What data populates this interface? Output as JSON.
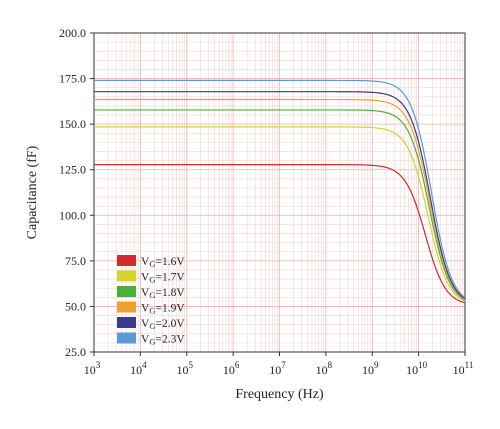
{
  "chart_data": {
    "type": "line",
    "xlabel": "Frequency (Hz)",
    "ylabel": "Capacitance (fF)",
    "x_scale": "log",
    "xlim": [
      1000,
      100000000000
    ],
    "ylim": [
      25,
      200
    ],
    "grid": true,
    "legend_placement": "bottom-left",
    "x_ticks": [
      {
        "base": "10",
        "exp": "3"
      },
      {
        "base": "10",
        "exp": "4"
      },
      {
        "base": "10",
        "exp": "5"
      },
      {
        "base": "10",
        "exp": "6"
      },
      {
        "base": "10",
        "exp": "7"
      },
      {
        "base": "10",
        "exp": "8"
      },
      {
        "base": "10",
        "exp": "9"
      },
      {
        "base": "10",
        "exp": "10"
      },
      {
        "base": "10",
        "exp": "11"
      }
    ],
    "y_ticks": [
      "25.0",
      "50.0",
      "75.0",
      "100.0",
      "125.0",
      "150.0",
      "175.0",
      "200.0"
    ],
    "y_tick_values": [
      25,
      50,
      75,
      100,
      125,
      150,
      175,
      200
    ],
    "series": [
      {
        "name": "VG=1.6V",
        "label_main": "V",
        "label_sub": "G",
        "label_rest": "=1.6V",
        "color": "#d42a2a",
        "plateau": 127.8,
        "high": 50.5,
        "fc": 14000000000
      },
      {
        "name": "VG=1.7V",
        "label_main": "V",
        "label_sub": "G",
        "label_rest": "=1.7V",
        "color": "#d4d42a",
        "plateau": 148.5,
        "high": 50.5,
        "fc": 16000000000
      },
      {
        "name": "VG=1.8V",
        "label_main": "V",
        "label_sub": "G",
        "label_rest": "=1.8V",
        "color": "#4caf3a",
        "plateau": 157.8,
        "high": 50.5,
        "fc": 17000000000
      },
      {
        "name": "VG=1.9V",
        "label_main": "V",
        "label_sub": "G",
        "label_rest": "=1.9V",
        "color": "#f0a030",
        "plateau": 163.5,
        "high": 50.5,
        "fc": 17500000000
      },
      {
        "name": "VG=2.0V",
        "label_main": "V",
        "label_sub": "G",
        "label_rest": "=2.0V",
        "color": "#3a3a8a",
        "plateau": 167.8,
        "high": 50.5,
        "fc": 18000000000
      },
      {
        "name": "VG=2.3V",
        "label_main": "V",
        "label_sub": "G",
        "label_rest": "=2.3V",
        "color": "#5b9bd5",
        "plateau": 174.0,
        "high": 50.5,
        "fc": 19000000000
      }
    ]
  }
}
